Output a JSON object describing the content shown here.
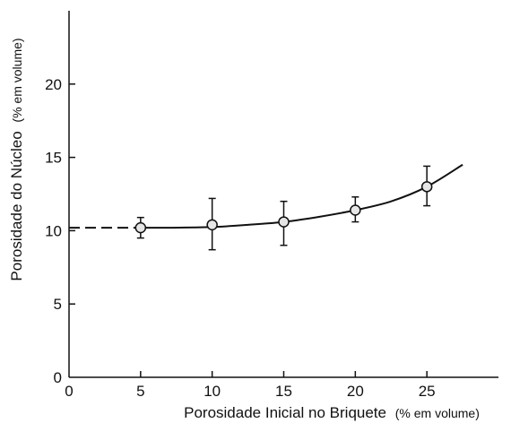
{
  "chart_data": {
    "type": "scatter",
    "title": "",
    "xlabel": "Porosidade Inicial no Briquete",
    "xlabel_unit": "(% em volume)",
    "ylabel": "Porosidade do Núcleo",
    "ylabel_unit": "(% em volume)",
    "xlim": [
      0,
      30
    ],
    "ylim": [
      0,
      25
    ],
    "x_ticks": [
      0,
      5,
      10,
      15,
      20,
      25
    ],
    "y_ticks": [
      0,
      5,
      10,
      15,
      20
    ],
    "x_tick_labels": [
      "0",
      "5",
      "10",
      "15",
      "20",
      "25"
    ],
    "y_tick_labels": [
      "0",
      "5",
      "10",
      "15",
      "20"
    ],
    "grid": false,
    "series": [
      {
        "points": [
          {
            "x": 5,
            "y": 10.2,
            "err_low": 9.5,
            "err_high": 10.9
          },
          {
            "x": 10,
            "y": 10.4,
            "err_low": 8.7,
            "err_high": 12.2
          },
          {
            "x": 15,
            "y": 10.6,
            "err_low": 9.0,
            "err_high": 12.0
          },
          {
            "x": 20,
            "y": 11.4,
            "err_low": 10.6,
            "err_high": 12.3
          },
          {
            "x": 25,
            "y": 13.0,
            "err_low": 11.7,
            "err_high": 14.4
          }
        ]
      }
    ],
    "fit_curve": {
      "style": "solid",
      "x": [
        4.5,
        7,
        10,
        12.5,
        15,
        17.5,
        20,
        22.5,
        25,
        27.5
      ],
      "y": [
        10.2,
        10.2,
        10.25,
        10.4,
        10.6,
        10.95,
        11.4,
        12.0,
        13.0,
        14.5
      ]
    },
    "extrapolation": {
      "style": "dashed",
      "x": [
        0,
        4.5
      ],
      "y": [
        10.2,
        10.2
      ]
    }
  }
}
